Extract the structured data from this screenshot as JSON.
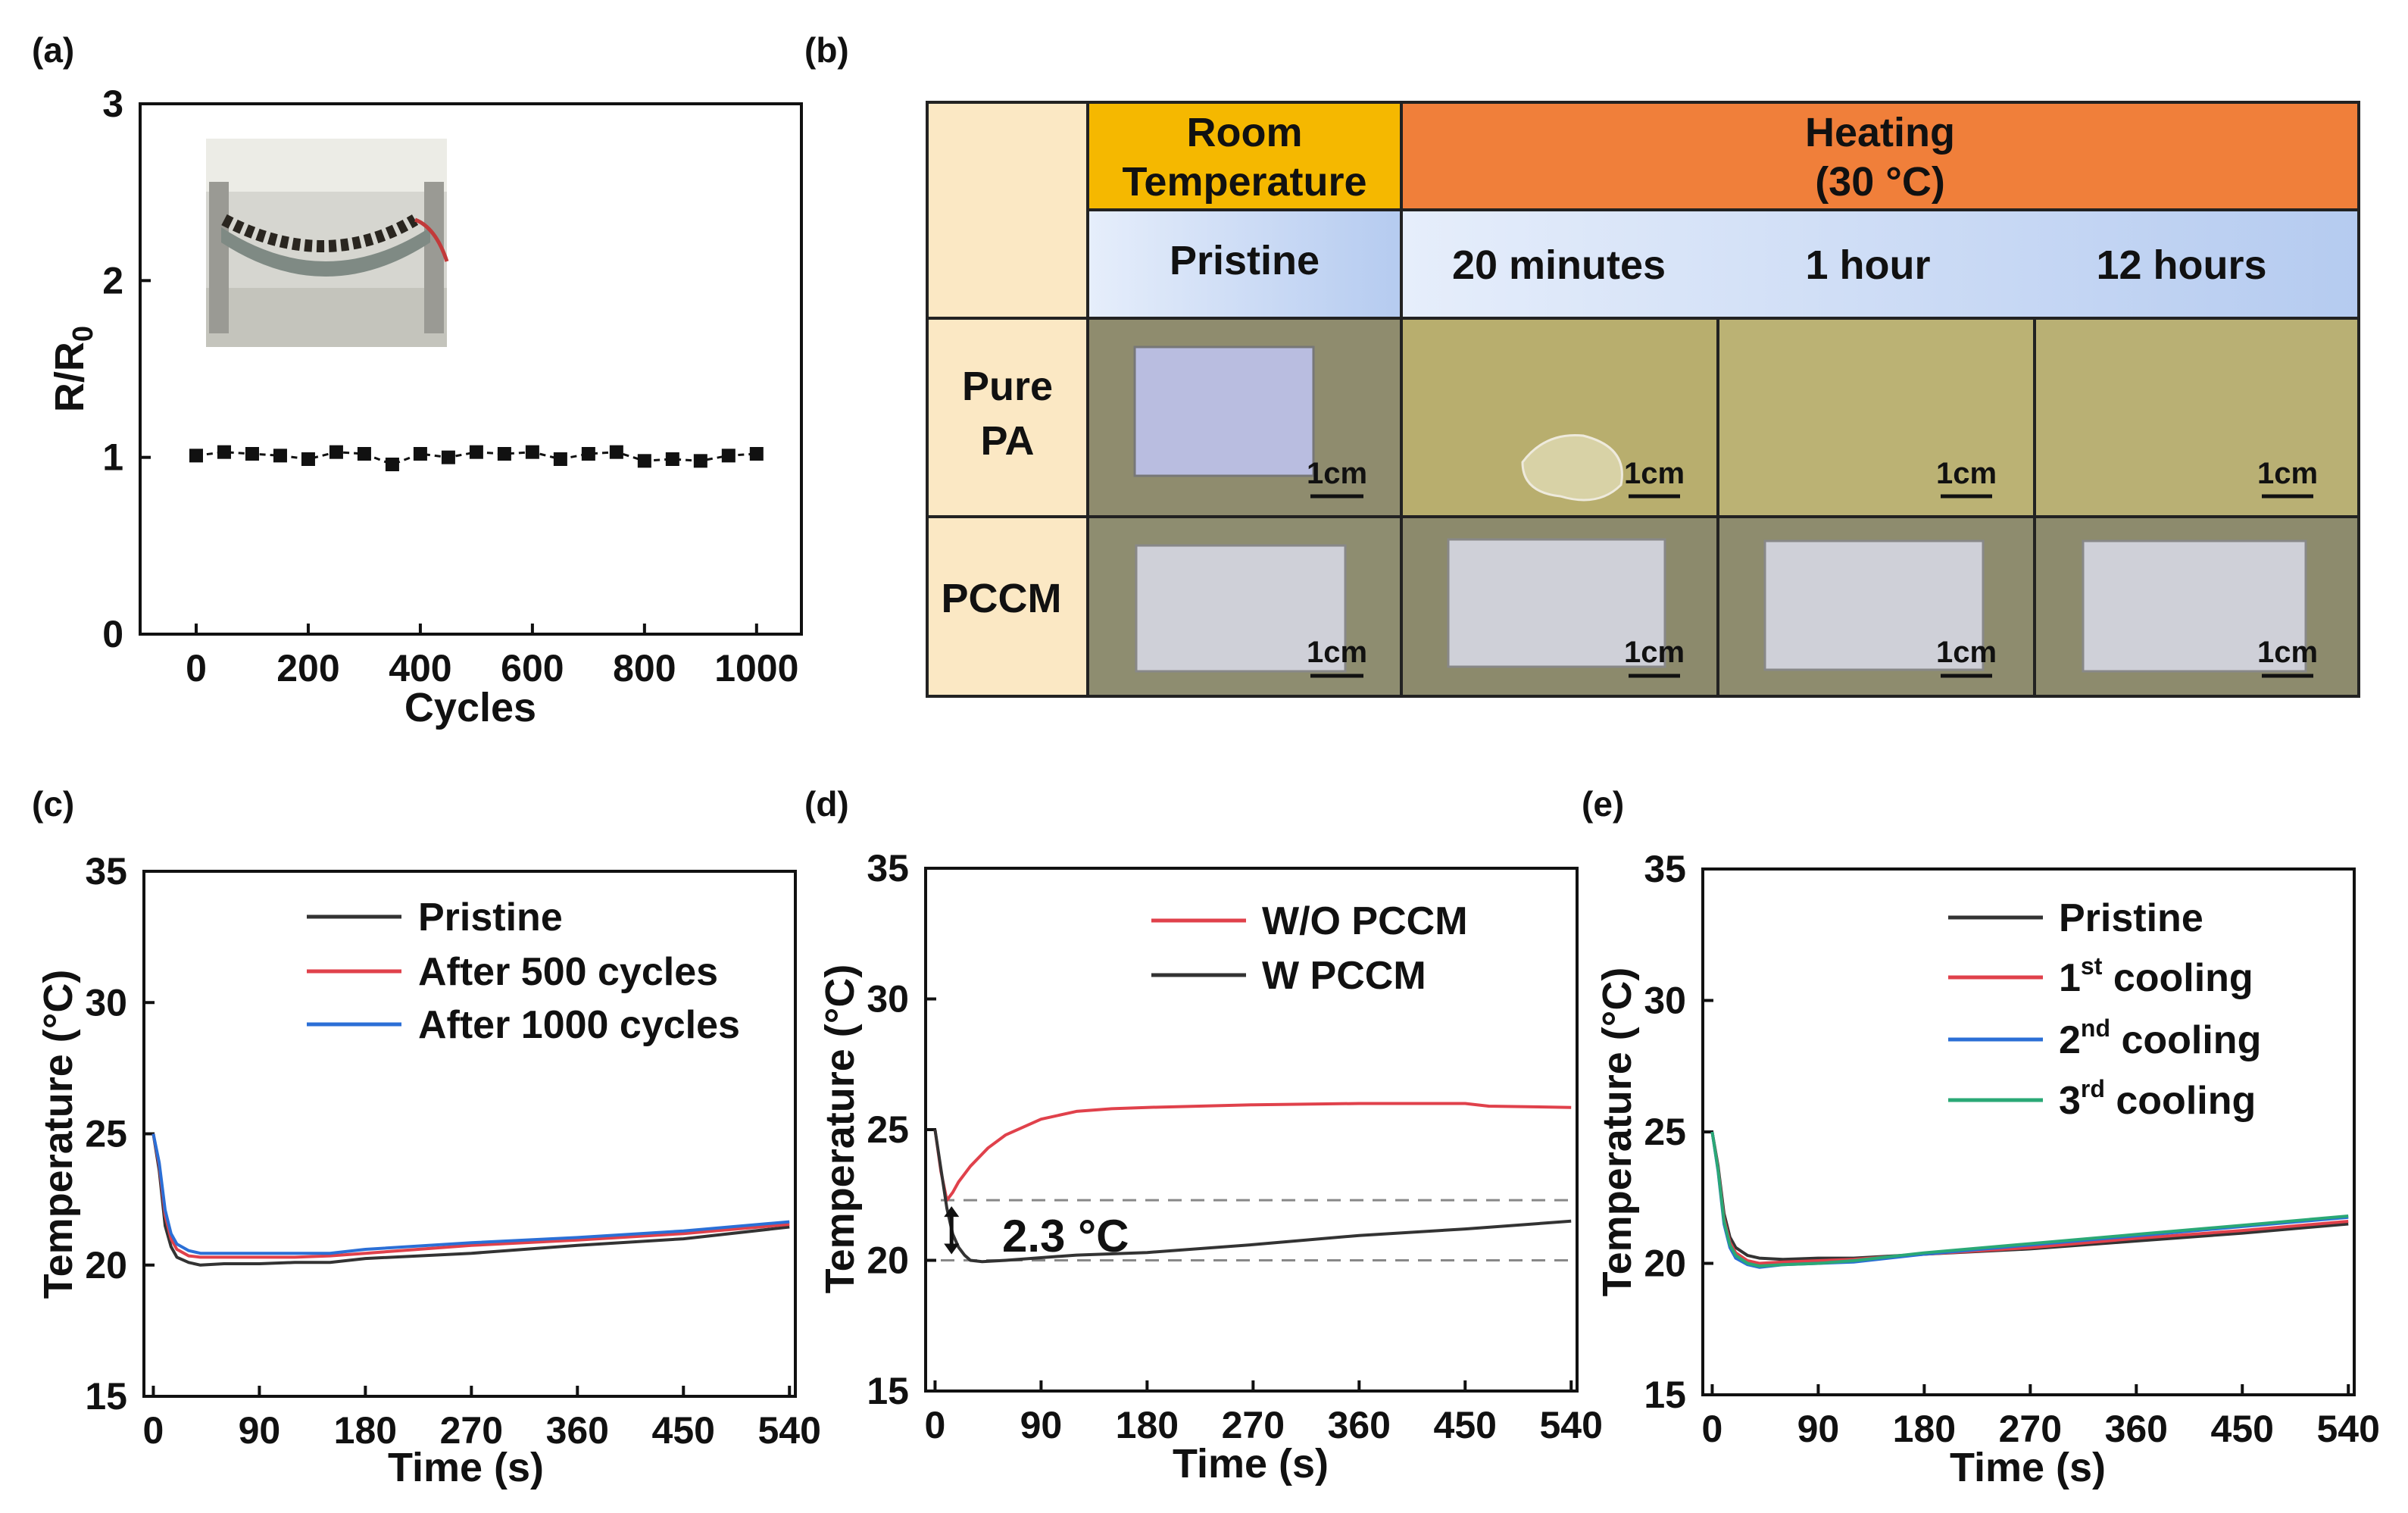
{
  "panels": {
    "a": "(a)",
    "b": "(b)",
    "c": "(c)",
    "d": "(d)",
    "e": "(e)"
  },
  "chart_data": [
    {
      "panel": "a",
      "type": "line",
      "xlabel": "Cycles",
      "ylabel_main": "R/R",
      "ylabel_sub": "0",
      "xlim": [
        -100,
        1080
      ],
      "ylim": [
        0,
        3
      ],
      "xticks": [
        "0",
        "200",
        "400",
        "600",
        "800",
        "1000"
      ],
      "xtick_values": [
        0,
        200,
        400,
        600,
        800,
        1000
      ],
      "yticks": [
        "0",
        "1",
        "2",
        "3"
      ],
      "ytick_values": [
        0,
        1,
        2,
        3
      ],
      "series": [
        {
          "name": "R/R0",
          "color": "#111111",
          "marker": "square",
          "x": [
            0,
            50,
            100,
            150,
            200,
            250,
            300,
            350,
            400,
            450,
            500,
            550,
            600,
            650,
            700,
            750,
            800,
            850,
            900,
            950,
            1000
          ],
          "y": [
            1.01,
            1.03,
            1.02,
            1.01,
            0.99,
            1.03,
            1.02,
            0.96,
            1.02,
            1.0,
            1.03,
            1.02,
            1.03,
            0.99,
            1.02,
            1.03,
            0.98,
            0.99,
            0.98,
            1.01,
            1.02
          ]
        }
      ],
      "inset": "photo-of-bent-sensor"
    },
    {
      "panel": "c",
      "type": "line",
      "xlabel": "Time (s)",
      "ylabel": "Temperature (°C)",
      "xlim": [
        -8,
        545
      ],
      "ylim": [
        15,
        35
      ],
      "xticks": [
        "0",
        "90",
        "180",
        "270",
        "360",
        "450",
        "540"
      ],
      "xtick_values": [
        0,
        90,
        180,
        270,
        360,
        450,
        540
      ],
      "yticks": [
        "15",
        "20",
        "25",
        "30",
        "35"
      ],
      "ytick_values": [
        15,
        20,
        25,
        30,
        35
      ],
      "series": [
        {
          "name": "Pristine",
          "color": "#333333",
          "x": [
            0,
            5,
            10,
            15,
            20,
            30,
            40,
            60,
            90,
            120,
            150,
            180,
            270,
            360,
            450,
            540
          ],
          "y": [
            25.0,
            23.6,
            21.5,
            20.7,
            20.3,
            20.1,
            20.0,
            20.05,
            20.05,
            20.1,
            20.1,
            20.25,
            20.45,
            20.75,
            21.0,
            21.45
          ]
        },
        {
          "name": "After 500 cycles",
          "color": "#e0414b",
          "x": [
            0,
            5,
            10,
            15,
            20,
            30,
            40,
            60,
            90,
            120,
            150,
            180,
            270,
            360,
            450,
            540
          ],
          "y": [
            25.0,
            23.8,
            21.9,
            21.0,
            20.6,
            20.35,
            20.3,
            20.3,
            20.3,
            20.3,
            20.35,
            20.45,
            20.75,
            20.95,
            21.2,
            21.55
          ]
        },
        {
          "name": "After 1000 cycles",
          "color": "#2b6fd6",
          "x": [
            0,
            5,
            10,
            15,
            20,
            30,
            40,
            60,
            90,
            120,
            150,
            180,
            270,
            360,
            450,
            540
          ],
          "y": [
            25.0,
            23.9,
            22.1,
            21.2,
            20.8,
            20.55,
            20.45,
            20.45,
            20.45,
            20.45,
            20.45,
            20.6,
            20.85,
            21.05,
            21.3,
            21.65
          ]
        }
      ]
    },
    {
      "panel": "d",
      "type": "line",
      "xlabel": "Time (s)",
      "ylabel": "Temperature (°C)",
      "xlim": [
        -8,
        545
      ],
      "ylim": [
        15,
        35
      ],
      "xticks": [
        "0",
        "90",
        "180",
        "270",
        "360",
        "450",
        "540"
      ],
      "xtick_values": [
        0,
        90,
        180,
        270,
        360,
        450,
        540
      ],
      "yticks": [
        "15",
        "20",
        "25",
        "30",
        "35"
      ],
      "ytick_values": [
        15,
        20,
        25,
        30,
        35
      ],
      "series": [
        {
          "name": "W/O PCCM",
          "color": "#e0414b",
          "x": [
            0,
            5,
            10,
            15,
            20,
            30,
            45,
            60,
            90,
            120,
            150,
            180,
            270,
            360,
            450,
            470,
            540
          ],
          "y": [
            25.0,
            23.4,
            22.3,
            22.6,
            23.0,
            23.6,
            24.3,
            24.8,
            25.4,
            25.7,
            25.8,
            25.85,
            25.95,
            26.0,
            26.0,
            25.9,
            25.85
          ]
        },
        {
          "name": "W PCCM",
          "color": "#333333",
          "x": [
            0,
            5,
            10,
            15,
            20,
            25,
            30,
            40,
            60,
            90,
            120,
            180,
            270,
            360,
            450,
            540
          ],
          "y": [
            25.0,
            23.5,
            22.0,
            21.0,
            20.5,
            20.2,
            20.0,
            19.95,
            20.0,
            20.1,
            20.2,
            20.3,
            20.6,
            20.95,
            21.2,
            21.5
          ]
        }
      ],
      "reference_lines": [
        22.3,
        20.0
      ],
      "annotation": "2.3 °C"
    },
    {
      "panel": "e",
      "type": "line",
      "xlabel": "Time (s)",
      "ylabel": "Temperature (°C)",
      "xlim": [
        -8,
        545
      ],
      "ylim": [
        15,
        35
      ],
      "xticks": [
        "0",
        "90",
        "180",
        "270",
        "360",
        "450",
        "540"
      ],
      "xtick_values": [
        0,
        90,
        180,
        270,
        360,
        450,
        540
      ],
      "yticks": [
        "15",
        "20",
        "25",
        "30",
        "35"
      ],
      "ytick_values": [
        15,
        20,
        25,
        30,
        35
      ],
      "series": [
        {
          "name": "Pristine",
          "color": "#333333",
          "x": [
            0,
            5,
            10,
            15,
            20,
            30,
            40,
            60,
            90,
            120,
            180,
            270,
            360,
            450,
            540
          ],
          "y": [
            25.0,
            23.7,
            21.9,
            21.0,
            20.6,
            20.3,
            20.2,
            20.15,
            20.2,
            20.2,
            20.35,
            20.55,
            20.85,
            21.15,
            21.5
          ]
        },
        {
          "name": "1st cooling",
          "color": "#e0414b",
          "x": [
            0,
            5,
            10,
            15,
            20,
            30,
            40,
            60,
            90,
            120,
            180,
            270,
            360,
            450,
            540
          ],
          "y": [
            25.0,
            23.6,
            21.7,
            20.8,
            20.4,
            20.1,
            20.0,
            20.05,
            20.1,
            20.15,
            20.35,
            20.6,
            20.95,
            21.25,
            21.6
          ]
        },
        {
          "name": "2nd cooling",
          "color": "#2b6fd6",
          "x": [
            0,
            5,
            10,
            15,
            20,
            30,
            40,
            60,
            90,
            120,
            180,
            270,
            360,
            450,
            540
          ],
          "y": [
            25.0,
            23.5,
            21.5,
            20.6,
            20.2,
            19.95,
            19.85,
            19.95,
            20.0,
            20.05,
            20.35,
            20.7,
            21.05,
            21.4,
            21.75
          ]
        },
        {
          "name": "3rd cooling",
          "color": "#2aa876",
          "x": [
            0,
            5,
            10,
            15,
            20,
            30,
            40,
            60,
            90,
            120,
            180,
            270,
            360,
            450,
            540
          ],
          "y": [
            25.0,
            23.55,
            21.6,
            20.7,
            20.3,
            20.0,
            19.9,
            19.95,
            20.0,
            20.1,
            20.4,
            20.75,
            21.1,
            21.45,
            21.8
          ]
        }
      ],
      "legend_sup": [
        "",
        "st",
        "nd",
        "rd"
      ],
      "legend_base": [
        "Pristine",
        "1",
        "2",
        "3"
      ],
      "legend_tail": [
        "",
        " cooling",
        " cooling",
        " cooling"
      ]
    }
  ],
  "table_b": {
    "group_headers": [
      {
        "line1": "Room",
        "line2": "Temperature"
      },
      {
        "line1": "Heating",
        "line2": "(30 °C)"
      }
    ],
    "columns": [
      "Pristine",
      "20 minutes",
      "1 hour",
      "12 hours"
    ],
    "rows": [
      {
        "line1": "Pure",
        "line2": "PA"
      },
      {
        "line1": "PCCM",
        "line2": ""
      }
    ],
    "scale_label": "1cm",
    "colors": {
      "corner": "#fbe8c4",
      "room": "#f5b800",
      "heating": "#f07f3a",
      "sub": "#c8d8f4",
      "photo": "#b4ad72",
      "photo_dark": "#8d8a5c"
    }
  }
}
